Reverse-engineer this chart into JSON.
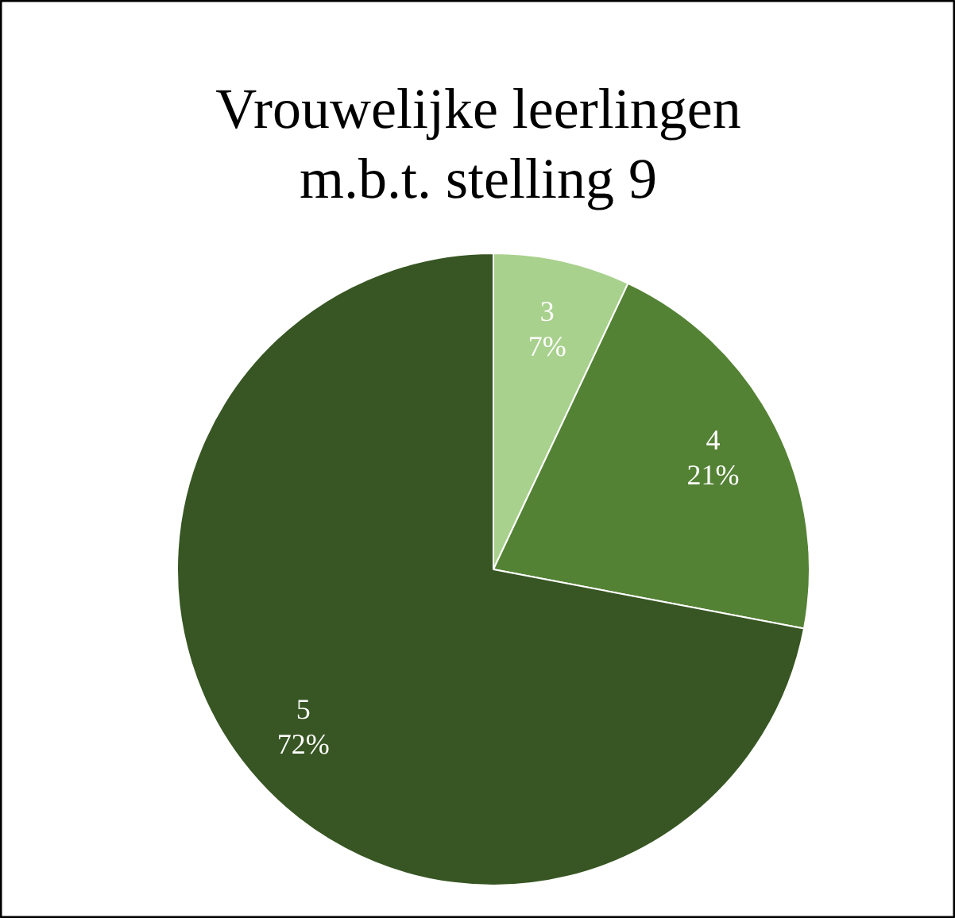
{
  "chart_data": {
    "type": "pie",
    "title": "Vrouwelijke leerlingen m.b.t. stelling 9",
    "categories": [
      "3",
      "4",
      "5"
    ],
    "values": [
      7,
      21,
      72
    ],
    "value_labels": [
      "7%",
      "21%",
      "72%"
    ],
    "colors": [
      "#a9d18e",
      "#548235",
      "#375623"
    ]
  }
}
